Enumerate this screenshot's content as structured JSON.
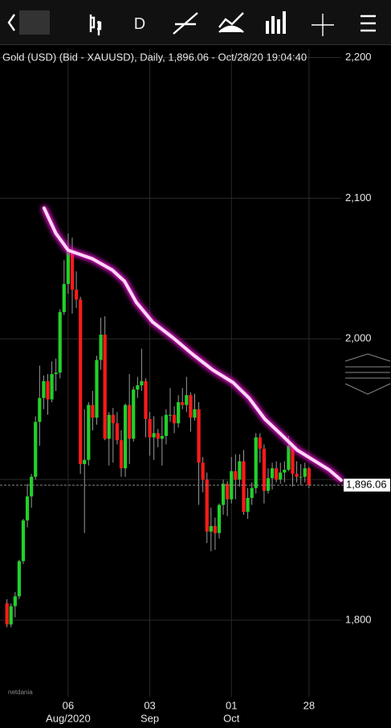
{
  "toolbar": {
    "period": "D"
  },
  "logo": "netdania",
  "chart_data": {
    "type": "candlestick",
    "title": "Gold (USD) (Bid - XAUUSD),  Daily, 1,896.06 - Oct/28/20 19:04:40",
    "open": [
      1812,
      1797,
      1810,
      1817,
      1842,
      1871,
      1888,
      1902,
      1941,
      1958,
      1970,
      1957,
      1975,
      1976,
      2019,
      2039,
      2062,
      2035,
      2028,
      1911,
      1914,
      1953,
      1944,
      1985,
      2003,
      1929,
      1946,
      1940,
      1928,
      1908,
      1953,
      1929,
      1964,
      1967,
      1970,
      1943,
      1930,
      1933,
      1929,
      1931,
      1946,
      1946,
      1940,
      1955,
      1953,
      1960,
      1944,
      1950,
      1912,
      1900,
      1863,
      1867,
      1862,
      1882,
      1897,
      1886,
      1906,
      1900,
      1913,
      1877,
      1887,
      1894,
      1930,
      1922,
      1892,
      1901,
      1908,
      1900,
      1905,
      1907,
      1924,
      1904,
      1902,
      1902,
      1908
    ],
    "high": [
      1815,
      1812,
      1820,
      1843,
      1872,
      1897,
      1904,
      1945,
      1981,
      1974,
      1975,
      1984,
      1986,
      2021,
      2056,
      2075,
      2072,
      2048,
      2030,
      1950,
      1955,
      1963,
      1988,
      2015,
      2016,
      1948,
      1951,
      1948,
      1935,
      1954,
      1975,
      1966,
      1973,
      1993,
      1972,
      1948,
      1945,
      1936,
      1945,
      1950,
      1965,
      1952,
      1960,
      1965,
      1973,
      1962,
      1961,
      1955,
      1916,
      1905,
      1880,
      1873,
      1883,
      1900,
      1899,
      1916,
      1918,
      1918,
      1921,
      1894,
      1898,
      1933,
      1933,
      1925,
      1908,
      1912,
      1913,
      1912,
      1913,
      1931,
      1926,
      1913,
      1911,
      1912,
      1909
    ],
    "low": [
      1795,
      1795,
      1802,
      1815,
      1840,
      1866,
      1880,
      1900,
      1924,
      1950,
      1946,
      1955,
      1963,
      1972,
      2017,
      2032,
      2018,
      2022,
      1904,
      1862,
      1910,
      1935,
      1939,
      1978,
      1928,
      1910,
      1912,
      1925,
      1902,
      1902,
      1911,
      1927,
      1958,
      1963,
      1930,
      1917,
      1914,
      1923,
      1910,
      1925,
      1941,
      1933,
      1937,
      1950,
      1948,
      1934,
      1942,
      1882,
      1891,
      1855,
      1849,
      1850,
      1858,
      1875,
      1874,
      1883,
      1886,
      1895,
      1875,
      1872,
      1882,
      1890,
      1912,
      1883,
      1890,
      1893,
      1898,
      1897,
      1898,
      1906,
      1895,
      1898,
      1896,
      1898,
      1894
    ],
    "close": [
      1797,
      1810,
      1817,
      1842,
      1871,
      1888,
      1902,
      1941,
      1958,
      1970,
      1957,
      1975,
      1976,
      2019,
      2039,
      2062,
      2035,
      2028,
      1911,
      1914,
      1953,
      1944,
      1985,
      2003,
      1929,
      1946,
      1940,
      1928,
      1908,
      1953,
      1929,
      1964,
      1967,
      1970,
      1943,
      1930,
      1933,
      1929,
      1931,
      1946,
      1946,
      1940,
      1955,
      1953,
      1960,
      1944,
      1950,
      1912,
      1900,
      1863,
      1867,
      1862,
      1882,
      1897,
      1886,
      1906,
      1900,
      1913,
      1877,
      1887,
      1894,
      1930,
      1922,
      1892,
      1901,
      1908,
      1900,
      1905,
      1907,
      1924,
      1904,
      1902,
      1902,
      1908,
      1896.06
    ],
    "up_color": "#22d02a",
    "down_color": "#ff1a1a",
    "line": {
      "x": [
        9.1,
        12.0,
        15,
        20.9,
        25.8,
        28.8,
        31.7,
        35.7,
        40.6,
        45.5,
        50.4,
        55.4,
        59.3,
        63.2,
        67.2,
        71.1,
        75.0,
        78.9,
        81.9
      ],
      "values": [
        2093,
        2075,
        2063,
        2057,
        2049,
        2041,
        2026,
        2012,
        2001,
        1989,
        1978,
        1969,
        1958,
        1943,
        1932,
        1921,
        1914,
        1907,
        1899.5
      ],
      "color": "#ffd6f6",
      "glow_color": "#e010c8"
    },
    "last_price": {
      "value": 1896.06,
      "label": "1,896.06"
    },
    "xlim": [
      -1.7,
      81.9
    ],
    "ylim": [
      1750,
      2206.3
    ],
    "yticks": [
      {
        "value": 1800,
        "label": "1,800"
      },
      {
        "value": 1900,
        "label": ""
      },
      {
        "value": 2000,
        "label": "2,000"
      },
      {
        "value": 2100,
        "label": "2,100"
      },
      {
        "value": 2200,
        "label": "2,200"
      }
    ],
    "xticks": [
      {
        "value": 15,
        "label": "06"
      },
      {
        "value": 35,
        "label": "03"
      },
      {
        "value": 55,
        "label": "01"
      },
      {
        "value": 74,
        "label": "28"
      }
    ],
    "xtick_months": [
      "Aug/2020",
      "Sep",
      "Oct",
      null
    ],
    "grid": true
  }
}
